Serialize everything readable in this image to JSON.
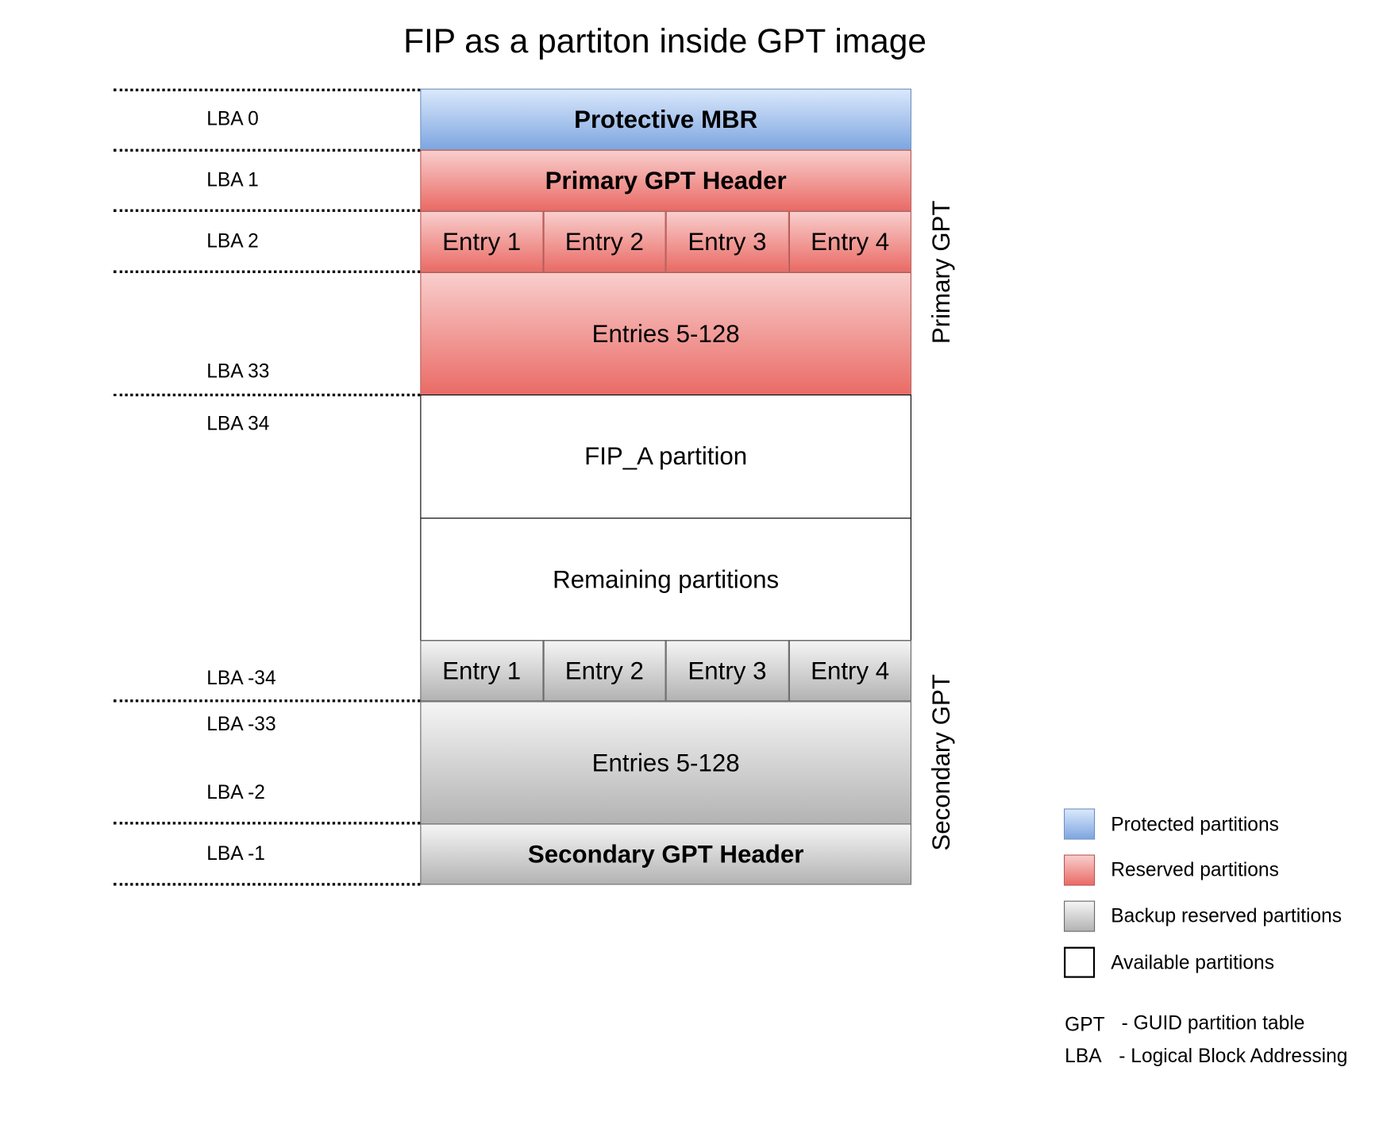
{
  "title": "FIP as a partiton inside GPT image",
  "lba_labels": [
    "LBA 0",
    "LBA 1",
    "LBA 2",
    "LBA 33",
    "LBA 34",
    "LBA -34",
    "LBA -33",
    "LBA -2",
    "LBA -1"
  ],
  "blocks": {
    "protective_mbr": "Protective MBR",
    "primary_header": "Primary GPT Header",
    "primary_entries": [
      "Entry 1",
      "Entry 2",
      "Entry 3",
      "Entry 4"
    ],
    "primary_entries_rest": "Entries 5-128",
    "fip_a": "FIP_A partition",
    "remaining": "Remaining partitions",
    "secondary_entries": [
      "Entry 1",
      "Entry 2",
      "Entry 3",
      "Entry 4"
    ],
    "secondary_entries_rest": "Entries 5-128",
    "secondary_header": "Secondary GPT Header"
  },
  "side_labels": {
    "primary": "Primary GPT",
    "secondary": "Secondary GPT"
  },
  "legend": [
    {
      "label": "Protected partitions",
      "color": "#7ea6e0"
    },
    {
      "label": "Reserved partitions",
      "color": "#ea6b66"
    },
    {
      "label": "Backup reserved partitions",
      "color": "#b3b3b3"
    },
    {
      "label": "Available partitions",
      "color": "#ffffff"
    }
  ],
  "abbreviations": [
    {
      "term": "GPT",
      "definition": "- GUID partition table"
    },
    {
      "term": "LBA",
      "definition": "- Logical Block Addressing"
    }
  ]
}
